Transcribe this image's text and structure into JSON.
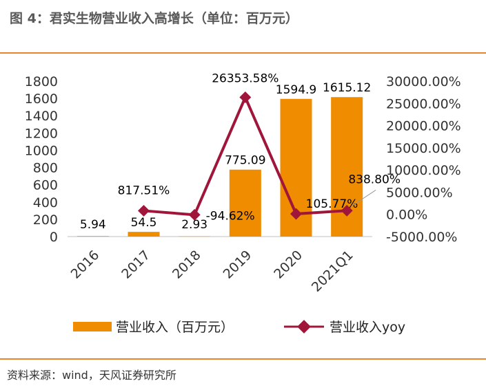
{
  "title": "图 4：君实生物营业收入高增长（单位：百万元）",
  "source": "资料来源：wind，天风证券研究所",
  "colors": {
    "bar": "#F08C00",
    "line": "#A0163A",
    "rule": "#E8852A"
  },
  "chart_data": {
    "type": "bar+line",
    "categories": [
      "2016",
      "2017",
      "2018",
      "2019",
      "2020",
      "2021Q1"
    ],
    "series": [
      {
        "name": "营业收入（百万元）",
        "type": "bar",
        "axis": "left",
        "values": [
          5.94,
          54.5,
          2.93,
          775.09,
          1594.9,
          1615.12
        ],
        "labels": [
          "5.94",
          "54.5",
          "2.93",
          "775.09",
          "1594.9",
          "1615.12"
        ]
      },
      {
        "name": "营业收入yoy",
        "type": "line",
        "axis": "right",
        "values": [
          null,
          817.51,
          -94.62,
          26353.58,
          105.77,
          838.8
        ],
        "labels": [
          "",
          "817.51%",
          "-94.62%",
          "26353.58%",
          "105.77%",
          "838.80%"
        ]
      }
    ],
    "left_axis": {
      "min": 0,
      "max": 1800,
      "ticks": [
        "0",
        "200",
        "400",
        "600",
        "800",
        "1000",
        "1200",
        "1400",
        "1600",
        "1800"
      ]
    },
    "right_axis": {
      "min": -5000,
      "max": 30000,
      "ticks": [
        "-5000.00%",
        "0.00%",
        "5000.00%",
        "10000.00%",
        "15000.00%",
        "20000.00%",
        "25000.00%",
        "30000.00%"
      ]
    },
    "legend": {
      "position": "bottom",
      "entries": [
        "营业收入（百万元）",
        "营业收入yoy"
      ]
    }
  }
}
